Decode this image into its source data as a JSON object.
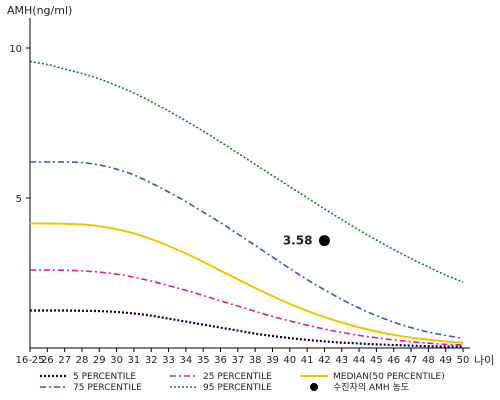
{
  "chart_data": {
    "type": "line",
    "ylabel": "AMH(ng/ml)",
    "xlabel": "나이",
    "ylim": [
      0,
      11
    ],
    "yticks": [
      10,
      5
    ],
    "categories": [
      "16-25",
      "26",
      "27",
      "28",
      "29",
      "30",
      "31",
      "32",
      "33",
      "34",
      "35",
      "36",
      "37",
      "38",
      "39",
      "40",
      "41",
      "42",
      "43",
      "44",
      "45",
      "46",
      "47",
      "48",
      "49",
      "50"
    ],
    "series": [
      {
        "name": "5 PERCENTILE",
        "color": "#000066",
        "dash": "2,2",
        "width": 2.2,
        "values": [
          1.25,
          1.25,
          1.25,
          1.24,
          1.23,
          1.2,
          1.15,
          1.08,
          0.98,
          0.88,
          0.78,
          0.68,
          0.58,
          0.48,
          0.4,
          0.33,
          0.27,
          0.22,
          0.18,
          0.15,
          0.12,
          0.1,
          0.08,
          0.06,
          0.05,
          0.04
        ]
      },
      {
        "name": "25 PERCENTILE",
        "color": "#dd1e8c",
        "dash": "6,3,2,3",
        "width": 1.6,
        "values": [
          2.6,
          2.6,
          2.59,
          2.57,
          2.53,
          2.46,
          2.36,
          2.23,
          2.08,
          1.92,
          1.75,
          1.57,
          1.4,
          1.22,
          1.05,
          0.9,
          0.76,
          0.63,
          0.52,
          0.42,
          0.34,
          0.27,
          0.21,
          0.16,
          0.12,
          0.1
        ]
      },
      {
        "name": "MEDIAN(50 PERCENTILE)",
        "color": "#f2c500",
        "dash": "",
        "width": 2,
        "values": [
          4.15,
          4.15,
          4.14,
          4.12,
          4.06,
          3.96,
          3.82,
          3.63,
          3.4,
          3.15,
          2.87,
          2.58,
          2.29,
          2.0,
          1.73,
          1.47,
          1.24,
          1.03,
          0.85,
          0.69,
          0.55,
          0.44,
          0.35,
          0.28,
          0.22,
          0.18
        ]
      },
      {
        "name": "75 PERCENTILE",
        "color": "#3355cc",
        "dash": "6,3,2,3",
        "width": 1.6,
        "values": [
          6.2,
          6.2,
          6.2,
          6.18,
          6.1,
          5.96,
          5.77,
          5.5,
          5.2,
          4.88,
          4.53,
          4.18,
          3.8,
          3.42,
          3.03,
          2.65,
          2.28,
          1.94,
          1.62,
          1.33,
          1.08,
          0.86,
          0.68,
          0.53,
          0.42,
          0.32
        ]
      },
      {
        "name": "95 PERCENTILE",
        "color": "#1f7a3a",
        "dash": "2,2",
        "width": 1.6,
        "values": [
          9.55,
          9.45,
          9.3,
          9.15,
          8.97,
          8.75,
          8.5,
          8.21,
          7.9,
          7.57,
          7.23,
          6.87,
          6.5,
          6.12,
          5.75,
          5.38,
          5.01,
          4.64,
          4.28,
          3.93,
          3.6,
          3.28,
          2.98,
          2.7,
          2.43,
          2.2
        ]
      }
    ],
    "point": {
      "name": "수진자의 AMH 농도",
      "label": "3.58",
      "category": "42",
      "value": 3.58,
      "color": "#000000"
    },
    "legend_position": "bottom",
    "grid": false
  }
}
